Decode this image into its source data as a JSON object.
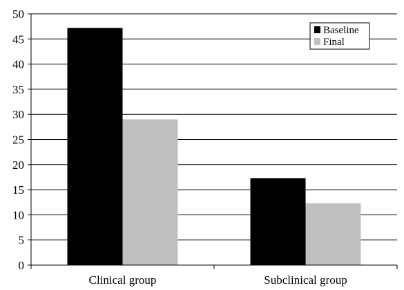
{
  "chart_data": {
    "type": "bar",
    "categories": [
      "Clinical group",
      "Subclinical group"
    ],
    "series": [
      {
        "name": "Baseline",
        "values": [
          47.2,
          17.3
        ],
        "color": "#000000"
      },
      {
        "name": "Final",
        "values": [
          29.0,
          12.3
        ],
        "color": "#c0c0c0"
      }
    ],
    "ylim": [
      0,
      50
    ],
    "yticks": [
      0,
      5,
      10,
      15,
      20,
      25,
      30,
      35,
      40,
      45,
      50
    ],
    "grid": true,
    "legend": "top-right",
    "title": "",
    "xlabel": "",
    "ylabel": ""
  }
}
